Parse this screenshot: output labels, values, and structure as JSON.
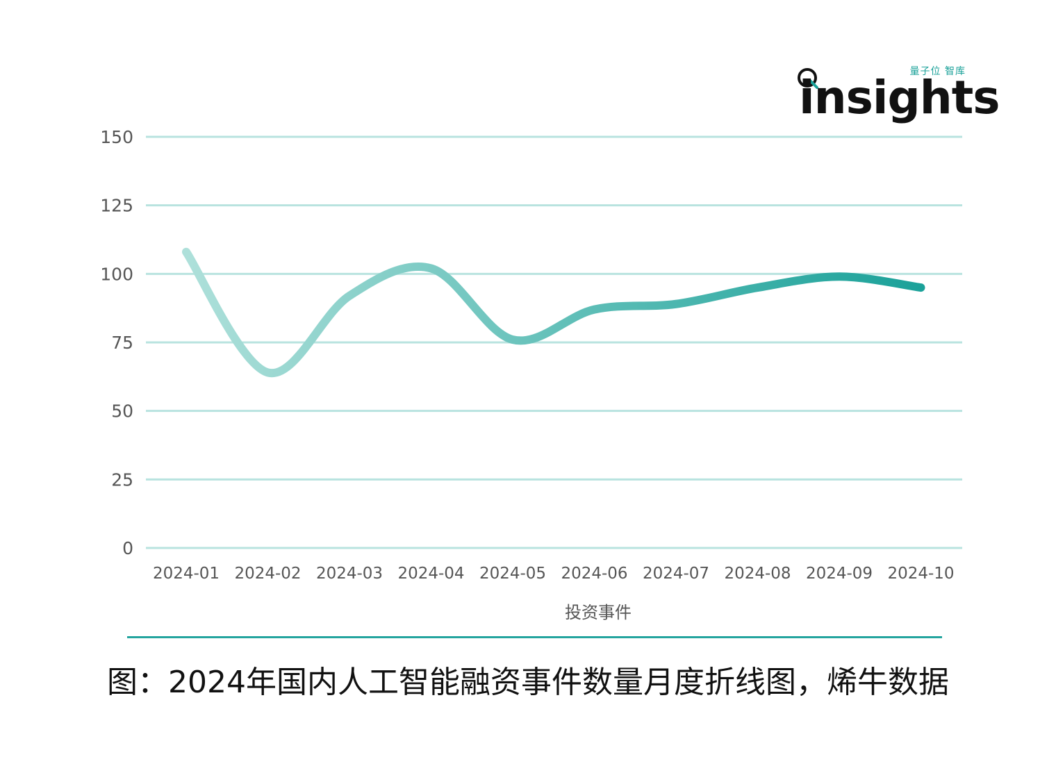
{
  "logo": {
    "tagline": "量子位 智库",
    "wordmark": "insights",
    "icon": "magnifier-q-icon"
  },
  "chart_data": {
    "type": "line",
    "categories": [
      "2024-01",
      "2024-02",
      "2024-03",
      "2024-04",
      "2024-05",
      "2024-06",
      "2024-07",
      "2024-08",
      "2024-09",
      "2024-10"
    ],
    "series": [
      {
        "name": "投资事件",
        "values": [
          108,
          64,
          92,
          102,
          76,
          87,
          89,
          95,
          99,
          95
        ]
      }
    ],
    "yticks": [
      "0",
      "25",
      "50",
      "75",
      "100",
      "125",
      "150"
    ],
    "ylim": [
      0,
      150
    ],
    "grid": true,
    "legend_position": "bottom-center",
    "colors": {
      "gradient_start": "#aee0da",
      "gradient_end": "#1aa199",
      "grid": "#b8e3df"
    }
  },
  "caption": "图：2024年国内人工智能融资事件数量月度折线图，烯牛数据"
}
